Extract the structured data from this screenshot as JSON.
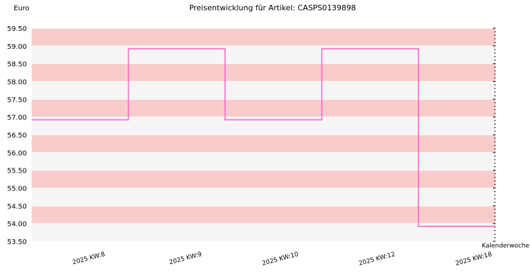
{
  "chart_data": {
    "type": "line",
    "step": true,
    "title": "Preisentwicklung für Artikel: CASPS0139898",
    "ylabel": "Euro",
    "xlabel": "Kalenderwoche",
    "ylim": [
      53.5,
      59.5
    ],
    "y_ticks": [
      "59.50",
      "59.00",
      "58.50",
      "58.00",
      "57.50",
      "57.00",
      "56.50",
      "56.00",
      "55.50",
      "55.00",
      "54.50",
      "54.00",
      "53.50"
    ],
    "categories": [
      "2025 KW:8",
      "2025 KW:9",
      "2025 KW:10",
      "2025 KW:12",
      "2025 KW:18"
    ],
    "series": [
      {
        "values": [
          56.92,
          58.92,
          56.92,
          58.92,
          53.92
        ]
      }
    ],
    "colors": {
      "line": "#ff66cc",
      "band_pink": "#f9cccc",
      "band_light": "#f5f5f5",
      "grid": "#ffffff"
    },
    "grid": true
  }
}
